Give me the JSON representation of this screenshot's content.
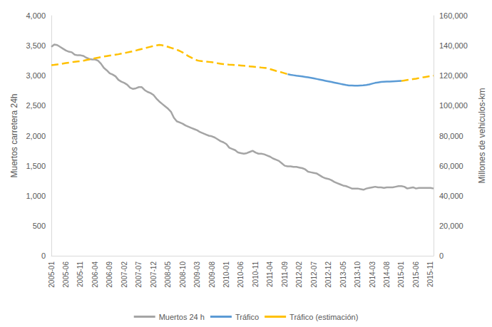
{
  "chart_data": {
    "type": "line",
    "y_label": "Muertos carretera 24h",
    "y2_label": "Millones de vehiculos-km",
    "categories": [
      "2005-01",
      null,
      null,
      null,
      null,
      "2005-06",
      null,
      null,
      null,
      null,
      "2005-11",
      null,
      null,
      null,
      null,
      "2006-04",
      null,
      null,
      null,
      null,
      "2006-09",
      null,
      null,
      null,
      null,
      "2007-02",
      null,
      null,
      null,
      null,
      "2007-07",
      null,
      null,
      null,
      null,
      "2007-12",
      null,
      null,
      null,
      null,
      "2008-05",
      null,
      null,
      null,
      null,
      "2008-10",
      null,
      null,
      null,
      null,
      "2009-03",
      null,
      null,
      null,
      null,
      "2009-08",
      null,
      null,
      null,
      null,
      "2010-01",
      null,
      null,
      null,
      null,
      "2010-06",
      null,
      null,
      null,
      null,
      "2010-11",
      null,
      null,
      null,
      null,
      "2011-04",
      null,
      null,
      null,
      null,
      "2011-09",
      null,
      null,
      null,
      null,
      "2012-02",
      null,
      null,
      null,
      null,
      "2012-07",
      null,
      null,
      null,
      null,
      "2012-12",
      null,
      null,
      null,
      null,
      "2013-05",
      null,
      null,
      null,
      null,
      "2013-10",
      null,
      null,
      null,
      null,
      "2014-03",
      null,
      null,
      null,
      null,
      "2014-08",
      null,
      null,
      null,
      null,
      "2015-01",
      null,
      null,
      null,
      null,
      "2015-06",
      null,
      null,
      null,
      null,
      "2015-11",
      null
    ],
    "series": [
      {
        "name": "Muertos 24 h",
        "color": "#a5a5a5",
        "axis": "y",
        "line_style": "solid",
        "values": [
          3480,
          3520,
          3510,
          3480,
          3450,
          3420,
          3400,
          3390,
          3350,
          3340,
          3340,
          3330,
          3300,
          3280,
          3270,
          3270,
          3250,
          3200,
          3130,
          3090,
          3040,
          3020,
          2990,
          2930,
          2900,
          2880,
          2850,
          2800,
          2780,
          2790,
          2810,
          2810,
          2760,
          2730,
          2710,
          2680,
          2620,
          2570,
          2530,
          2490,
          2450,
          2400,
          2300,
          2240,
          2220,
          2200,
          2170,
          2150,
          2130,
          2110,
          2090,
          2060,
          2040,
          2020,
          2000,
          1990,
          1970,
          1940,
          1910,
          1890,
          1860,
          1800,
          1780,
          1760,
          1720,
          1710,
          1700,
          1710,
          1730,
          1750,
          1720,
          1700,
          1700,
          1690,
          1670,
          1650,
          1620,
          1600,
          1580,
          1540,
          1500,
          1490,
          1490,
          1480,
          1480,
          1470,
          1460,
          1440,
          1400,
          1390,
          1380,
          1370,
          1340,
          1310,
          1290,
          1280,
          1260,
          1230,
          1210,
          1190,
          1170,
          1160,
          1140,
          1120,
          1120,
          1120,
          1110,
          1100,
          1120,
          1130,
          1140,
          1150,
          1140,
          1140,
          1130,
          1140,
          1140,
          1140,
          1150,
          1160,
          1160,
          1150,
          1120,
          1130,
          1140,
          1120,
          1130,
          1130,
          1130,
          1130,
          1130,
          1120
        ]
      },
      {
        "name": "Tráfico",
        "color": "#5b9bd5",
        "axis": "y2",
        "line_style": "solid",
        "values": [
          null,
          null,
          null,
          null,
          null,
          null,
          null,
          null,
          null,
          null,
          null,
          null,
          null,
          null,
          null,
          null,
          null,
          null,
          null,
          null,
          null,
          null,
          null,
          null,
          null,
          null,
          null,
          null,
          null,
          null,
          null,
          null,
          null,
          null,
          null,
          null,
          null,
          null,
          null,
          null,
          null,
          null,
          null,
          null,
          null,
          null,
          null,
          null,
          null,
          null,
          null,
          null,
          null,
          null,
          null,
          null,
          null,
          null,
          null,
          null,
          null,
          null,
          null,
          null,
          null,
          null,
          null,
          null,
          null,
          null,
          null,
          null,
          null,
          null,
          null,
          null,
          null,
          null,
          null,
          null,
          null,
          121000,
          120600,
          120300,
          120000,
          119800,
          119500,
          119200,
          118900,
          118600,
          118200,
          117800,
          117400,
          117000,
          116600,
          116200,
          115800,
          115400,
          115000,
          114600,
          114200,
          113800,
          113500,
          113500,
          113400,
          113400,
          113500,
          113600,
          113800,
          114200,
          114700,
          115200,
          115500,
          115800,
          116000,
          116100,
          116100,
          116200,
          116300,
          116400,
          116500,
          null,
          null,
          null,
          null,
          null,
          null,
          null,
          null,
          null,
          null,
          null
        ]
      },
      {
        "name": "Tráfico (estimación)",
        "color": "#ffc000",
        "axis": "y2",
        "line_style": "dashed",
        "values": [
          127000,
          127200,
          127500,
          127800,
          128100,
          128400,
          128700,
          129000,
          129300,
          129500,
          129700,
          130000,
          130400,
          130800,
          131200,
          131600,
          132000,
          132400,
          132800,
          133100,
          133400,
          133700,
          134000,
          134300,
          134700,
          135100,
          135500,
          135900,
          136300,
          136800,
          137300,
          137800,
          138300,
          138800,
          139300,
          139800,
          140200,
          140500,
          140300,
          139800,
          139200,
          138600,
          138000,
          137300,
          136500,
          135500,
          134300,
          133000,
          132000,
          131000,
          130200,
          129800,
          129600,
          129400,
          129200,
          129000,
          128700,
          128300,
          128000,
          127700,
          127500,
          127300,
          127200,
          127100,
          127000,
          126800,
          126600,
          126400,
          126200,
          126000,
          125800,
          125600,
          125400,
          125200,
          125000,
          124400,
          123800,
          123200,
          122700,
          122200,
          121600,
          121000,
          null,
          null,
          null,
          null,
          null,
          null,
          null,
          null,
          null,
          null,
          null,
          null,
          null,
          null,
          null,
          null,
          null,
          null,
          null,
          null,
          null,
          null,
          null,
          null,
          null,
          null,
          null,
          null,
          null,
          null,
          null,
          null,
          null,
          null,
          null,
          null,
          null,
          null,
          116500,
          116800,
          117100,
          117400,
          117700,
          118000,
          118400,
          118800,
          119100,
          119400,
          119700,
          120000
        ]
      }
    ],
    "ylim": [
      0,
      4000
    ],
    "yticks": [
      0,
      500,
      1000,
      1500,
      2000,
      2500,
      3000,
      3500,
      4000
    ],
    "y2lim": [
      0,
      160000
    ],
    "y2ticks": [
      0,
      20000,
      40000,
      60000,
      80000,
      100000,
      120000,
      140000,
      160000
    ],
    "grid": false,
    "legend": "bottom",
    "marker": "none"
  }
}
